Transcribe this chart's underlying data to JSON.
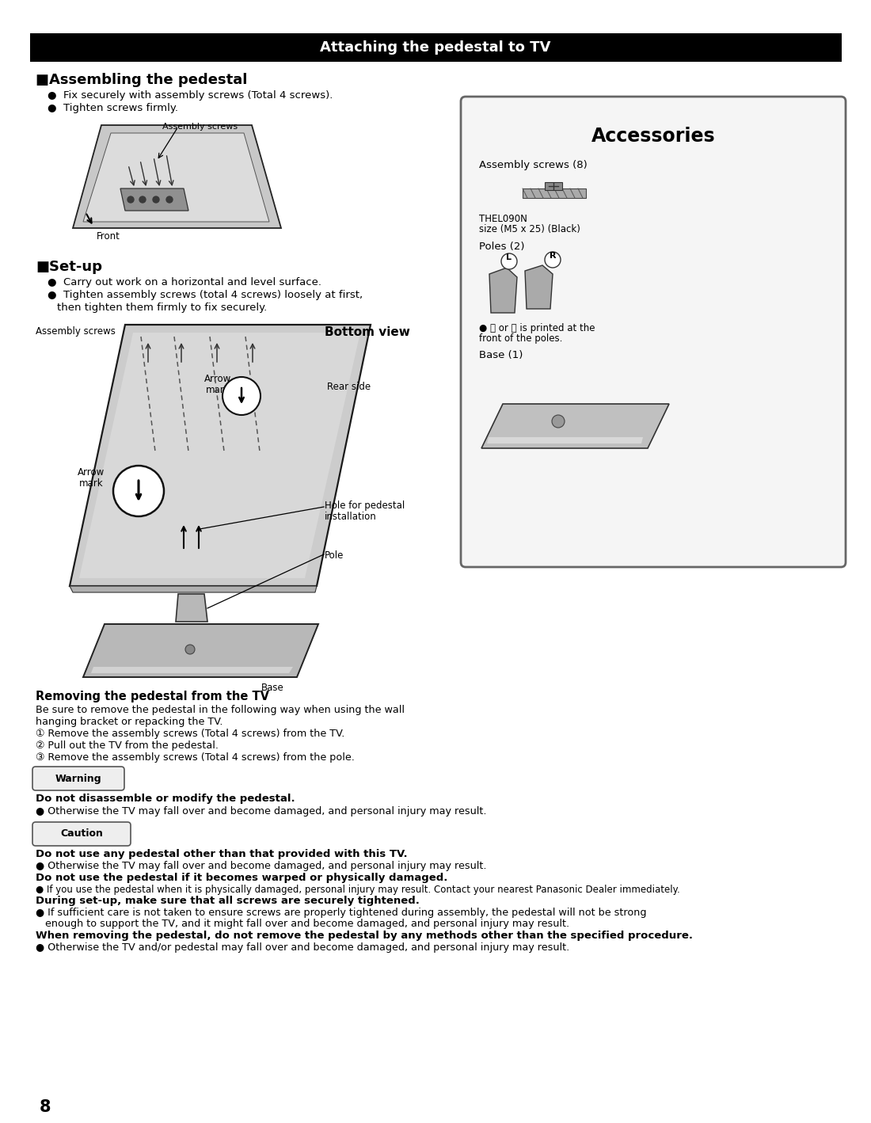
{
  "page_bg": "#ffffff",
  "header_bg": "#000000",
  "header_text": "Attaching the pedestal to TV",
  "header_text_color": "#ffffff",
  "section1_title": "■Assembling the pedestal",
  "section1_b1": "Fix securely with assembly screws (Total 4 screws).",
  "section1_b2": "Tighten screws firmly.",
  "section2_title": "■Set-up",
  "section2_b1": "Carry out work on a horizontal and level surface.",
  "section2_b2a": "Tighten assembly screws (total 4 screws) loosely at first,",
  "section2_b2b": "then tighten them firmly to fix securely.",
  "accessories_title": "Accessories",
  "acc_screws_label": "Assembly screws (8)",
  "acc_screws_sub1": "THEL090N",
  "acc_screws_sub2": "size (M5 x 25) (Black)",
  "acc_poles_label": "Poles (2)",
  "acc_poles_sub": "● Ⓛ or Ⓡ is printed at the",
  "acc_poles_sub2": "front of the poles.",
  "acc_base_label": "Base (1)",
  "diagram1_screws_label": "Assembly screws",
  "diagram1_front_label": "Front",
  "diagram2_screws_label": "Assembly screws",
  "diagram2_bottom_label": "Bottom view",
  "diagram2_rear_label": "Rear side",
  "diagram2_arrow1a": "Arrow",
  "diagram2_arrow1b": "mark",
  "diagram2_arrow2a": "Arrow",
  "diagram2_arrow2b": "mark",
  "diagram2_hole_label1": "Hole for pedestal",
  "diagram2_hole_label2": "installation",
  "diagram2_pole_label": "Pole",
  "diagram2_base_label": "Base",
  "removing_title": "Removing the pedestal from the TV",
  "removing_intro1": "Be sure to remove the pedestal in the following way when using the wall",
  "removing_intro2": "hanging bracket or repacking the TV.",
  "removing_step1": "① Remove the assembly screws (Total 4 screws) from the TV.",
  "removing_step2": "② Pull out the TV from the pedestal.",
  "removing_step3": "③ Remove the assembly screws (Total 4 screws) from the pole.",
  "warning_label": "Warning",
  "warning_bold": "Do not disassemble or modify the pedestal.",
  "warning_text": "● Otherwise the TV may fall over and become damaged, and personal injury may result.",
  "caution_label": "Caution",
  "caution1_bold": "Do not use any pedestal other than that provided with this TV.",
  "caution1_text": "● Otherwise the TV may fall over and become damaged, and personal injury may result.",
  "caution2_bold": "Do not use the pedestal if it becomes warped or physically damaged.",
  "caution2_text": "● If you use the pedestal when it is physically damaged, personal injury may result. Contact your nearest Panasonic Dealer immediately.",
  "caution3_bold": "During set-up, make sure that all screws are securely tightened.",
  "caution3_t1": "● If sufficient care is not taken to ensure screws are properly tightened during assembly, the pedestal will not be strong",
  "caution3_t2": "   enough to support the TV, and it might fall over and become damaged, and personal injury may result.",
  "caution4_bold": "When removing the pedestal, do not remove the pedestal by any methods other than the specified procedure.",
  "caution4_text": "● Otherwise the TV and/or pedestal may fall over and become damaged, and personal injury may result.",
  "page_number": "8"
}
